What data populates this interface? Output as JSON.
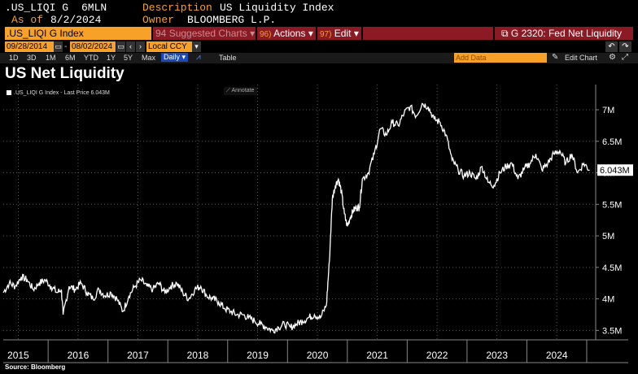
{
  "header": {
    "ticker": ".US_LIQI G",
    "units": "6MLN",
    "as_of_label": "As of",
    "as_of_date": "8/2/2024",
    "description_label": "Description",
    "description_value": "US Liquidity Index",
    "owner_label": "Owner",
    "owner_value": "BLOOMBERG L.P."
  },
  "toolbar": {
    "security": ".US_LIQI G Index",
    "suggested_num": "94",
    "suggested_label": "Suggested Charts",
    "actions_num": "96)",
    "actions_label": "Actions",
    "edit_num": "97)",
    "edit_label": "Edit",
    "function_label": "G 2320: Fed Net Liquidity"
  },
  "range": {
    "start_date": "09/28/2014",
    "end_date": "08/02/2024",
    "currency": "Local CCY"
  },
  "periods": [
    "1D",
    "3D",
    "1M",
    "6M",
    "YTD",
    "1Y",
    "5Y",
    "Max"
  ],
  "frequency": "Daily",
  "table_label": "Table",
  "add_data_placeholder": "Add Data",
  "edit_chart_label": "Edit Chart",
  "annotate_label": "Annotate",
  "source_label": "Source: Bloomberg",
  "colors": {
    "accent": "#f7a129",
    "toolbar_red": "#8b1a24",
    "line": "#ffffff",
    "grid": "#5a5a5a"
  },
  "chart_data": {
    "type": "line",
    "title": "US Net Liquidity",
    "legend": ".US_LIQI G Index - Last Price 6.043M",
    "last_value_label": "6.043M",
    "ylim": [
      3.35,
      7.4
    ],
    "xlim": [
      2014.75,
      2024.65
    ],
    "y_ticks": [
      3.5,
      4,
      4.5,
      5,
      5.5,
      6,
      6.5,
      7
    ],
    "y_tick_labels": [
      "3.5M",
      "4M",
      "4.5M",
      "5M",
      "5.5M",
      "6M",
      "6.5M",
      "7M"
    ],
    "x_ticks": [
      2015,
      2016,
      2017,
      2018,
      2019,
      2020,
      2021,
      2022,
      2023,
      2024
    ],
    "x_tick_labels": [
      "2015",
      "2016",
      "2017",
      "2018",
      "2019",
      "2020",
      "2021",
      "2022",
      "2023",
      "2024"
    ],
    "grid": true,
    "series": [
      {
        "name": ".US_LIQI G Index",
        "x": [
          2014.75,
          2014.85,
          2014.95,
          2015.05,
          2015.15,
          2015.25,
          2015.35,
          2015.45,
          2015.55,
          2015.65,
          2015.72,
          2015.75,
          2015.85,
          2015.95,
          2016.05,
          2016.15,
          2016.25,
          2016.35,
          2016.45,
          2016.55,
          2016.65,
          2016.75,
          2016.85,
          2016.95,
          2017.05,
          2017.15,
          2017.25,
          2017.35,
          2017.45,
          2017.55,
          2017.65,
          2017.75,
          2017.85,
          2017.95,
          2018.05,
          2018.15,
          2018.25,
          2018.35,
          2018.45,
          2018.55,
          2018.65,
          2018.75,
          2018.85,
          2018.95,
          2019.05,
          2019.15,
          2019.25,
          2019.35,
          2019.45,
          2019.55,
          2019.65,
          2019.75,
          2019.85,
          2019.95,
          2020.05,
          2020.15,
          2020.2,
          2020.25,
          2020.3,
          2020.35,
          2020.4,
          2020.45,
          2020.5,
          2020.55,
          2020.6,
          2020.65,
          2020.7,
          2020.75,
          2020.85,
          2020.95,
          2021.05,
          2021.15,
          2021.25,
          2021.35,
          2021.45,
          2021.55,
          2021.65,
          2021.75,
          2021.85,
          2021.95,
          2022.05,
          2022.15,
          2022.25,
          2022.35,
          2022.45,
          2022.55,
          2022.65,
          2022.75,
          2022.85,
          2022.95,
          2023.05,
          2023.15,
          2023.25,
          2023.35,
          2023.45,
          2023.55,
          2023.65,
          2023.75,
          2023.85,
          2023.95,
          2024.05,
          2024.15,
          2024.25,
          2024.35,
          2024.45,
          2024.55
        ],
        "values": [
          4.1,
          4.25,
          4.2,
          4.35,
          4.3,
          4.15,
          4.25,
          4.3,
          4.2,
          4.1,
          4.15,
          3.75,
          4.2,
          4.15,
          4.25,
          4.1,
          4.0,
          4.15,
          4.05,
          4.1,
          4.0,
          3.8,
          4.05,
          4.2,
          4.3,
          4.2,
          4.15,
          4.25,
          4.1,
          4.2,
          4.25,
          4.1,
          4.0,
          4.15,
          4.2,
          4.05,
          4.0,
          3.95,
          3.85,
          3.8,
          3.75,
          3.75,
          3.7,
          3.65,
          3.6,
          3.55,
          3.5,
          3.55,
          3.6,
          3.55,
          3.6,
          3.65,
          3.7,
          3.75,
          3.7,
          3.9,
          4.6,
          5.6,
          5.8,
          5.9,
          5.7,
          5.35,
          5.15,
          5.3,
          5.4,
          5.45,
          5.45,
          5.9,
          6.0,
          6.3,
          6.7,
          6.6,
          6.8,
          6.75,
          6.95,
          7.05,
          6.9,
          7.1,
          7.05,
          6.85,
          6.8,
          6.6,
          6.2,
          6.05,
          5.95,
          6.0,
          5.9,
          6.1,
          5.85,
          5.8,
          6.0,
          6.1,
          6.15,
          5.9,
          6.05,
          6.15,
          6.3,
          6.05,
          6.15,
          6.3,
          6.35,
          6.15,
          6.3,
          6.0,
          6.15,
          6.043
        ]
      }
    ]
  }
}
